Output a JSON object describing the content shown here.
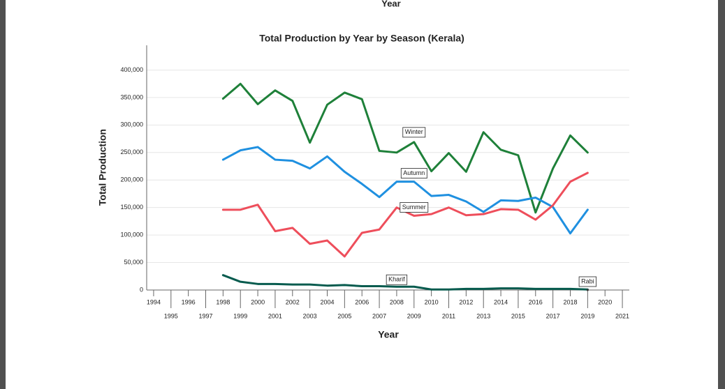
{
  "page_header": "Year",
  "chart_data": {
    "type": "line",
    "title": "Total Production by Year by Season (Kerala)",
    "x_label": "Year",
    "y_label": "Total Production",
    "x": [
      1998,
      1999,
      2000,
      2001,
      2002,
      2003,
      2004,
      2005,
      2006,
      2007,
      2008,
      2009,
      2010,
      2011,
      2012,
      2013,
      2014,
      2015,
      2016,
      2017,
      2018,
      2019
    ],
    "series": [
      {
        "name": "Winter",
        "color": "#1e8039",
        "values": [
          348000,
          375000,
          338000,
          363000,
          344000,
          268000,
          337000,
          359000,
          347000,
          253000,
          250000,
          269000,
          216000,
          249000,
          215000,
          287000,
          255000,
          245000,
          141000,
          221000,
          281000,
          250000
        ]
      },
      {
        "name": "Autumn",
        "color": "#1f90e0",
        "values": [
          237000,
          254000,
          260000,
          237000,
          235000,
          221000,
          243000,
          215000,
          193000,
          169000,
          197000,
          197000,
          171000,
          173000,
          161000,
          142000,
          163000,
          162000,
          168000,
          151000,
          103000,
          146000
        ]
      },
      {
        "name": "Summer",
        "color": "#ee4e5b",
        "values": [
          146000,
          146000,
          155000,
          107000,
          113000,
          84000,
          90000,
          61000,
          104000,
          110000,
          150000,
          135000,
          138000,
          150000,
          136000,
          138000,
          147000,
          146000,
          128000,
          154000,
          197000,
          213000
        ]
      },
      {
        "name": "Kharif",
        "color": "#075b4e",
        "values": [
          27000,
          15000,
          11000,
          11000,
          10000,
          10000,
          8000,
          9000,
          7000,
          7000,
          6000,
          6000,
          1000,
          1000,
          2000,
          2000,
          3000,
          3000,
          2000,
          2000,
          2000,
          1000
        ]
      },
      {
        "name": "Rabi",
        "color": "#333333",
        "values": [
          null,
          null,
          null,
          null,
          null,
          null,
          null,
          null,
          null,
          null,
          null,
          null,
          null,
          null,
          null,
          null,
          null,
          null,
          null,
          null,
          null,
          0
        ]
      }
    ],
    "xlim": [
      1993.6,
      2021.4
    ],
    "xticks": [
      1994,
      1995,
      1996,
      1997,
      1998,
      1999,
      2000,
      2001,
      2002,
      2003,
      2004,
      2005,
      2006,
      2007,
      2008,
      2009,
      2010,
      2011,
      2012,
      2013,
      2014,
      2015,
      2016,
      2017,
      2018,
      2019,
      2020,
      2021
    ],
    "ylim": [
      0,
      445000
    ],
    "yticks": [
      0,
      {
        "value": 50000,
        "label": "50,000"
      },
      {
        "value": 100000,
        "label": "100,000"
      },
      {
        "value": 150000,
        "label": "150,000"
      },
      {
        "value": 200000,
        "label": "200,000"
      },
      {
        "value": 250000,
        "label": "250,000"
      },
      {
        "value": 300000,
        "label": "300,000"
      },
      {
        "value": 350000,
        "label": "350,000"
      },
      {
        "value": 400000,
        "label": "400,000"
      }
    ],
    "grid": true
  }
}
